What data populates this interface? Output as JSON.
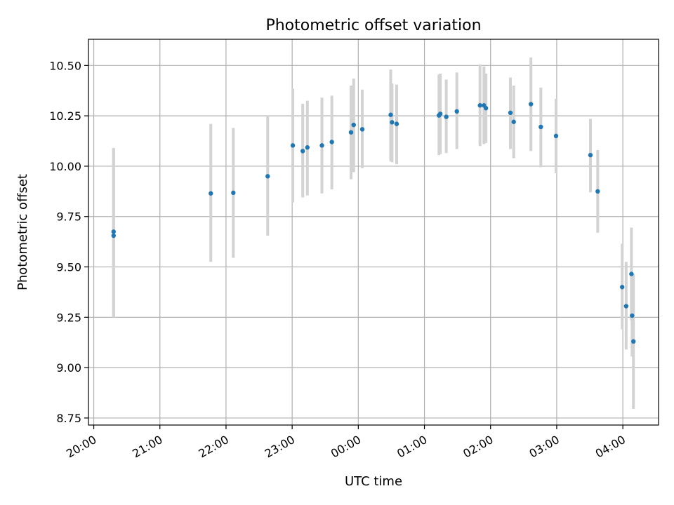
{
  "chart_data": {
    "type": "scatter",
    "title": "Photometric offset variation",
    "xlabel": "UTC time",
    "ylabel": "Photometric offset",
    "x_unit": "UTC time (hours relative to 00:00 on the second day; 20:00 = -4)",
    "xlim": [
      -4.08,
      4.54
    ],
    "ylim": [
      8.715,
      10.63
    ],
    "x_tick_labels": [
      "20:00",
      "21:00",
      "22:00",
      "23:00",
      "00:00",
      "01:00",
      "02:00",
      "03:00",
      "04:00"
    ],
    "x_ticks": [
      -4,
      -3,
      -2,
      -1,
      0,
      1,
      2,
      3,
      4
    ],
    "y_ticks": [
      8.75,
      9.0,
      9.25,
      9.5,
      9.75,
      10.0,
      10.25,
      10.5
    ],
    "y_tick_labels": [
      "8.75",
      "9.00",
      "9.25",
      "9.50",
      "9.75",
      "10.00",
      "10.25",
      "10.50"
    ],
    "grid": true,
    "marker_color": "#1f77b4",
    "errorbar_color": "#d3d3d3",
    "points": [
      {
        "x": -3.7,
        "y": 9.675,
        "lo": 9.25,
        "hi": 10.09
      },
      {
        "x": -3.7,
        "y": 9.655,
        "lo": 9.25,
        "hi": 10.09
      },
      {
        "x": -2.23,
        "y": 9.865,
        "lo": 9.525,
        "hi": 10.21
      },
      {
        "x": -1.89,
        "y": 9.868,
        "lo": 9.545,
        "hi": 10.19
      },
      {
        "x": -1.37,
        "y": 9.95,
        "lo": 9.655,
        "hi": 10.25
      },
      {
        "x": -0.99,
        "y": 10.103,
        "lo": 9.82,
        "hi": 10.385
      },
      {
        "x": -0.84,
        "y": 10.075,
        "lo": 9.845,
        "hi": 10.31
      },
      {
        "x": -0.77,
        "y": 10.093,
        "lo": 9.855,
        "hi": 10.325
      },
      {
        "x": -0.55,
        "y": 10.103,
        "lo": 9.865,
        "hi": 10.34
      },
      {
        "x": -0.4,
        "y": 10.12,
        "lo": 9.885,
        "hi": 10.35
      },
      {
        "x": -0.11,
        "y": 10.168,
        "lo": 9.935,
        "hi": 10.4
      },
      {
        "x": -0.07,
        "y": 10.205,
        "lo": 9.97,
        "hi": 10.435
      },
      {
        "x": 0.06,
        "y": 10.183,
        "lo": 9.99,
        "hi": 10.38
      },
      {
        "x": 0.49,
        "y": 10.255,
        "lo": 10.025,
        "hi": 10.48
      },
      {
        "x": 0.51,
        "y": 10.218,
        "lo": 10.02,
        "hi": 10.41
      },
      {
        "x": 0.58,
        "y": 10.21,
        "lo": 10.01,
        "hi": 10.405
      },
      {
        "x": 1.22,
        "y": 10.252,
        "lo": 10.055,
        "hi": 10.455
      },
      {
        "x": 1.24,
        "y": 10.26,
        "lo": 10.06,
        "hi": 10.46
      },
      {
        "x": 1.33,
        "y": 10.245,
        "lo": 10.065,
        "hi": 10.43
      },
      {
        "x": 1.49,
        "y": 10.272,
        "lo": 10.085,
        "hi": 10.465
      },
      {
        "x": 1.84,
        "y": 10.302,
        "lo": 10.1,
        "hi": 10.505
      },
      {
        "x": 1.9,
        "y": 10.302,
        "lo": 10.11,
        "hi": 10.495
      },
      {
        "x": 1.93,
        "y": 10.288,
        "lo": 10.115,
        "hi": 10.46
      },
      {
        "x": 2.3,
        "y": 10.265,
        "lo": 10.085,
        "hi": 10.44
      },
      {
        "x": 2.35,
        "y": 10.22,
        "lo": 10.04,
        "hi": 10.4
      },
      {
        "x": 2.61,
        "y": 10.308,
        "lo": 10.075,
        "hi": 10.54
      },
      {
        "x": 2.76,
        "y": 10.195,
        "lo": 9.995,
        "hi": 10.39
      },
      {
        "x": 2.99,
        "y": 10.15,
        "lo": 9.965,
        "hi": 10.335
      },
      {
        "x": 3.51,
        "y": 10.055,
        "lo": 9.87,
        "hi": 10.235
      },
      {
        "x": 3.62,
        "y": 9.875,
        "lo": 9.67,
        "hi": 10.08
      },
      {
        "x": 3.99,
        "y": 9.4,
        "lo": 9.19,
        "hi": 9.615
      },
      {
        "x": 4.05,
        "y": 9.305,
        "lo": 9.09,
        "hi": 9.525
      },
      {
        "x": 4.13,
        "y": 9.465,
        "lo": 9.235,
        "hi": 9.695
      },
      {
        "x": 4.14,
        "y": 9.258,
        "lo": 9.055,
        "hi": 9.46
      },
      {
        "x": 4.16,
        "y": 9.13,
        "lo": 8.795,
        "hi": 9.465
      }
    ]
  }
}
